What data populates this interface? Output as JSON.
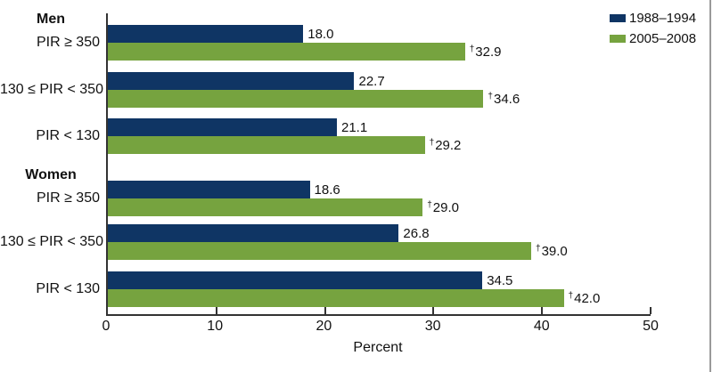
{
  "colors": {
    "series1": "#0F3564",
    "series2": "#76A33F",
    "axis": "#333333",
    "right_rule": "#9A9A9A",
    "text": "#111111"
  },
  "legend": {
    "items": [
      {
        "label": "1988–1994",
        "series": "series1"
      },
      {
        "label": "2005–2008",
        "series": "series2"
      }
    ]
  },
  "chart_data": {
    "type": "bar",
    "orientation": "horizontal",
    "title": "",
    "xlabel": "Percent",
    "xlim": [
      0,
      50
    ],
    "xticks": [
      0,
      10,
      20,
      30,
      40,
      50
    ],
    "grid": false,
    "legend_position": "top-right",
    "series_names": [
      "1988–1994",
      "2005–2008"
    ],
    "flag_symbol": "†",
    "groups": [
      {
        "header": "Men",
        "rows": [
          {
            "category": "PIR ≥ 350",
            "bars": [
              {
                "series": "1988–1994",
                "value": 18.0,
                "label": "18.0",
                "flag": ""
              },
              {
                "series": "2005–2008",
                "value": 32.9,
                "label": "32.9",
                "flag": "†"
              }
            ]
          },
          {
            "category": "130 ≤ PIR < 350",
            "bars": [
              {
                "series": "1988–1994",
                "value": 22.7,
                "label": "22.7",
                "flag": ""
              },
              {
                "series": "2005–2008",
                "value": 34.6,
                "label": "34.6",
                "flag": "†"
              }
            ]
          },
          {
            "category": "PIR < 130",
            "bars": [
              {
                "series": "1988–1994",
                "value": 21.1,
                "label": "21.1",
                "flag": ""
              },
              {
                "series": "2005–2008",
                "value": 29.2,
                "label": "29.2",
                "flag": "†"
              }
            ]
          }
        ]
      },
      {
        "header": "Women",
        "rows": [
          {
            "category": "PIR ≥ 350",
            "bars": [
              {
                "series": "1988–1994",
                "value": 18.6,
                "label": "18.6",
                "flag": ""
              },
              {
                "series": "2005–2008",
                "value": 29.0,
                "label": "29.0",
                "flag": "†"
              }
            ]
          },
          {
            "category": "130 ≤ PIR < 350",
            "bars": [
              {
                "series": "1988–1994",
                "value": 26.8,
                "label": "26.8",
                "flag": ""
              },
              {
                "series": "2005–2008",
                "value": 39.0,
                "label": "39.0",
                "flag": "†"
              }
            ]
          },
          {
            "category": "PIR < 130",
            "bars": [
              {
                "series": "1988–1994",
                "value": 34.5,
                "label": "34.5",
                "flag": ""
              },
              {
                "series": "2005–2008",
                "value": 42.0,
                "label": "42.0",
                "flag": "†"
              }
            ]
          }
        ]
      }
    ]
  }
}
